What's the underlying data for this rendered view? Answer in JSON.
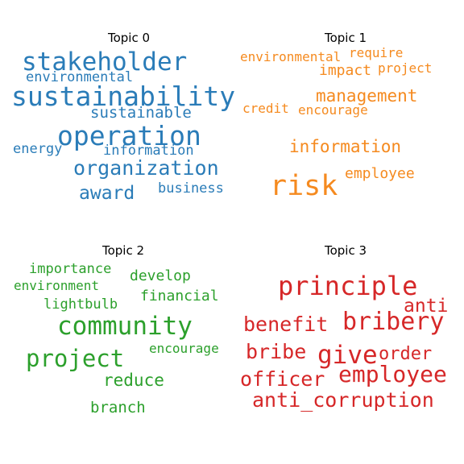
{
  "colors": {
    "topic0": "#2a7cb8",
    "topic1": "#f58a1f",
    "topic2": "#2ca02c",
    "topic3": "#d62728"
  },
  "topics": [
    {
      "title": "Topic 0",
      "words": [
        "stakeholder",
        "environmental",
        "sustainability",
        "sustainable",
        "operation",
        "energy",
        "information",
        "organization",
        "award",
        "business"
      ]
    },
    {
      "title": "Topic 1",
      "words": [
        "environmental",
        "require",
        "impact",
        "project",
        "management",
        "credit",
        "encourage",
        "information",
        "employee",
        "risk"
      ]
    },
    {
      "title": "Topic 2",
      "words": [
        "importance",
        "develop",
        "environment",
        "financial",
        "lightbulb",
        "community",
        "encourage",
        "project",
        "reduce",
        "branch"
      ]
    },
    {
      "title": "Topic 3",
      "words": [
        "principle",
        "anti",
        "benefit",
        "bribery",
        "bribe",
        "give",
        "order",
        "employee",
        "officer",
        "anti_corruption"
      ]
    }
  ]
}
